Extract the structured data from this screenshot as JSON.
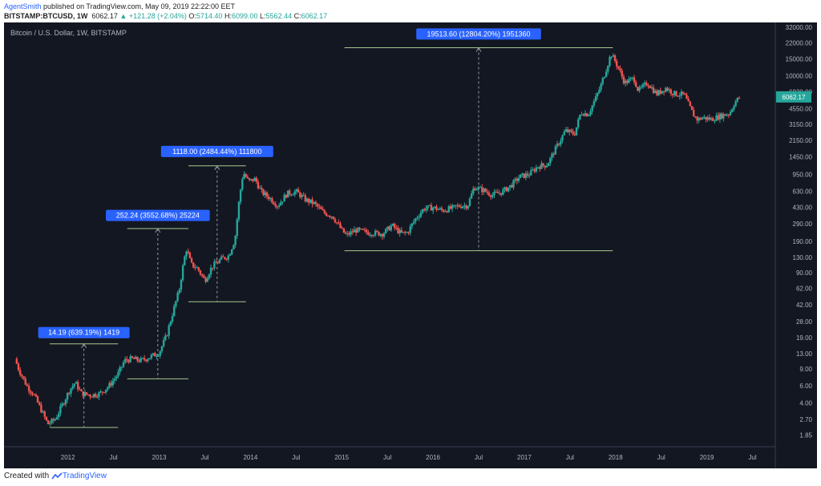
{
  "header": {
    "author": "AgentSmith",
    "published_text": "published on TradingView.com, May 09, 2019 22:22:00 EET",
    "symbol": "BITSTAMP:BTCUSD, 1W",
    "last_price": "6062.17",
    "change": "▲ +121.28 (+2.04%)",
    "open_label": "O:",
    "open": "5714.40",
    "high_label": "H:",
    "high": "6099.00",
    "low_label": "L:",
    "low": "5562.44",
    "close_label": "C:",
    "close": "6062.17"
  },
  "footer": {
    "created_with": "Created with",
    "brand": "TradingView"
  },
  "colors": {
    "background": "#131722",
    "up": "#26a69a",
    "down": "#ef5350",
    "label_bg": "#2962ff",
    "measure": "#a6c98a"
  },
  "chart_data": {
    "type": "candlestick",
    "title": "Bitcoin / U.S. Dollar, 1W, BITSTAMP",
    "scale": "log",
    "ylim": [
      1.4,
      36000
    ],
    "xlim": [
      2011.3,
      2019.75
    ],
    "grid": false,
    "price_tag": "6062.17",
    "price_ticks": [
      "32000.00",
      "22000.00",
      "15000.00",
      "10000.00",
      "6820.00",
      "4550.00",
      "3150.00",
      "2150.00",
      "1450.00",
      "950.00",
      "630.00",
      "430.00",
      "290.00",
      "190.00",
      "130.00",
      "90.00",
      "62.00",
      "42.00",
      "28.00",
      "19.00",
      "13.00",
      "9.00",
      "6.00",
      "4.00",
      "2.70",
      "1.85"
    ],
    "time_ticks": [
      {
        "label": "2012",
        "x": 2012.0
      },
      {
        "label": "Jul",
        "x": 2012.5
      },
      {
        "label": "2013",
        "x": 2013.0
      },
      {
        "label": "Jul",
        "x": 2013.5
      },
      {
        "label": "2014",
        "x": 2014.0
      },
      {
        "label": "Jul",
        "x": 2014.5
      },
      {
        "label": "2015",
        "x": 2015.0
      },
      {
        "label": "Jul",
        "x": 2015.5
      },
      {
        "label": "2016",
        "x": 2016.0
      },
      {
        "label": "Jul",
        "x": 2016.5
      },
      {
        "label": "2017",
        "x": 2017.0
      },
      {
        "label": "Jul",
        "x": 2017.5
      },
      {
        "label": "2018",
        "x": 2018.0
      },
      {
        "label": "Jul",
        "x": 2018.5
      },
      {
        "label": "2019",
        "x": 2019.0
      },
      {
        "label": "Jul",
        "x": 2019.5
      }
    ],
    "price_path": [
      [
        2011.42,
        11.5
      ],
      [
        2011.46,
        9.0
      ],
      [
        2011.55,
        6.0
      ],
      [
        2011.62,
        5.0
      ],
      [
        2011.7,
        3.5
      ],
      [
        2011.78,
        2.4
      ],
      [
        2011.86,
        2.7
      ],
      [
        2011.95,
        4.0
      ],
      [
        2012.02,
        5.5
      ],
      [
        2012.08,
        6.5
      ],
      [
        2012.15,
        5.0
      ],
      [
        2012.25,
        4.8
      ],
      [
        2012.35,
        5.0
      ],
      [
        2012.45,
        6.0
      ],
      [
        2012.55,
        8.0
      ],
      [
        2012.62,
        11.0
      ],
      [
        2012.7,
        11.5
      ],
      [
        2012.8,
        11.0
      ],
      [
        2012.9,
        12.0
      ],
      [
        2013.0,
        13.3
      ],
      [
        2013.08,
        20.0
      ],
      [
        2013.15,
        35.0
      ],
      [
        2013.22,
        60.0
      ],
      [
        2013.27,
        120.0
      ],
      [
        2013.3,
        160.0
      ],
      [
        2013.35,
        110.0
      ],
      [
        2013.42,
        100.0
      ],
      [
        2013.5,
        75.0
      ],
      [
        2013.58,
        105.0
      ],
      [
        2013.68,
        125.0
      ],
      [
        2013.76,
        135.0
      ],
      [
        2013.83,
        200.0
      ],
      [
        2013.88,
        550.0
      ],
      [
        2013.92,
        1000.0
      ],
      [
        2013.98,
        800.0
      ],
      [
        2014.05,
        850.0
      ],
      [
        2014.12,
        620.0
      ],
      [
        2014.2,
        550.0
      ],
      [
        2014.3,
        450.0
      ],
      [
        2014.4,
        600.0
      ],
      [
        2014.5,
        630.0
      ],
      [
        2014.6,
        520.0
      ],
      [
        2014.7,
        470.0
      ],
      [
        2014.8,
        380.0
      ],
      [
        2014.9,
        350.0
      ],
      [
        2015.0,
        250.0
      ],
      [
        2015.05,
        220.0
      ],
      [
        2015.15,
        250.0
      ],
      [
        2015.3,
        235.0
      ],
      [
        2015.45,
        230.0
      ],
      [
        2015.55,
        280.0
      ],
      [
        2015.65,
        230.0
      ],
      [
        2015.72,
        235.0
      ],
      [
        2015.8,
        320.0
      ],
      [
        2015.9,
        420.0
      ],
      [
        2016.0,
        430.0
      ],
      [
        2016.1,
        400.0
      ],
      [
        2016.2,
        420.0
      ],
      [
        2016.3,
        450.0
      ],
      [
        2016.38,
        450.0
      ],
      [
        2016.45,
        700.0
      ],
      [
        2016.55,
        650.0
      ],
      [
        2016.65,
        580.0
      ],
      [
        2016.75,
        620.0
      ],
      [
        2016.85,
        720.0
      ],
      [
        2016.95,
        900.0
      ],
      [
        2017.05,
        950.0
      ],
      [
        2017.15,
        1150.0
      ],
      [
        2017.25,
        1200.0
      ],
      [
        2017.35,
        1800.0
      ],
      [
        2017.45,
        2700.0
      ],
      [
        2017.55,
        2500.0
      ],
      [
        2017.62,
        4200.0
      ],
      [
        2017.7,
        4000.0
      ],
      [
        2017.78,
        5800.0
      ],
      [
        2017.84,
        8000.0
      ],
      [
        2017.9,
        12000.0
      ],
      [
        2017.95,
        17000.0
      ],
      [
        2018.0,
        14000.0
      ],
      [
        2018.05,
        11000.0
      ],
      [
        2018.1,
        8500.0
      ],
      [
        2018.2,
        9500.0
      ],
      [
        2018.25,
        7000.0
      ],
      [
        2018.35,
        8500.0
      ],
      [
        2018.45,
        6500.0
      ],
      [
        2018.55,
        7500.0
      ],
      [
        2018.65,
        6500.0
      ],
      [
        2018.75,
        6400.0
      ],
      [
        2018.85,
        4000.0
      ],
      [
        2018.9,
        3500.0
      ],
      [
        2018.95,
        3700.0
      ],
      [
        2019.05,
        3550.0
      ],
      [
        2019.15,
        3850.0
      ],
      [
        2019.25,
        4100.0
      ],
      [
        2019.3,
        5200.0
      ],
      [
        2019.36,
        6062.0
      ]
    ],
    "measurements": [
      {
        "label": "14.19 (639.19%) 1419",
        "x_start": 2011.8,
        "x_end": 2012.55,
        "low": 2.22,
        "high": 16.41,
        "label_price": 21.5
      },
      {
        "label": "252.24 (3552.68%) 25224",
        "x_start": 2012.65,
        "x_end": 2013.32,
        "low": 7.1,
        "high": 259.34,
        "label_price": 355
      },
      {
        "label": "1118.00 (2484.44%) 111800",
        "x_start": 2013.32,
        "x_end": 2013.95,
        "low": 45.0,
        "high": 1163.0,
        "label_price": 1640
      },
      {
        "label": "19513.60 (12804.20%) 1951360",
        "x_start": 2015.03,
        "x_end": 2017.97,
        "low": 152.4,
        "high": 19666.0,
        "label_price": 27300
      }
    ]
  }
}
